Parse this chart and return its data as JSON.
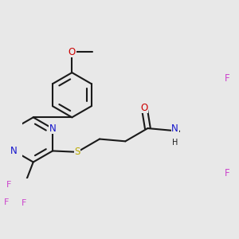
{
  "bg": "#e8e8e8",
  "bc": "#1a1a1a",
  "bw": 1.5,
  "colors": {
    "O": "#cc0000",
    "N": "#1414cc",
    "S": "#bbaa00",
    "F": "#cc44cc",
    "C": "#1a1a1a",
    "H": "#1a1a1a"
  },
  "fs": 8.5,
  "R": 0.18
}
